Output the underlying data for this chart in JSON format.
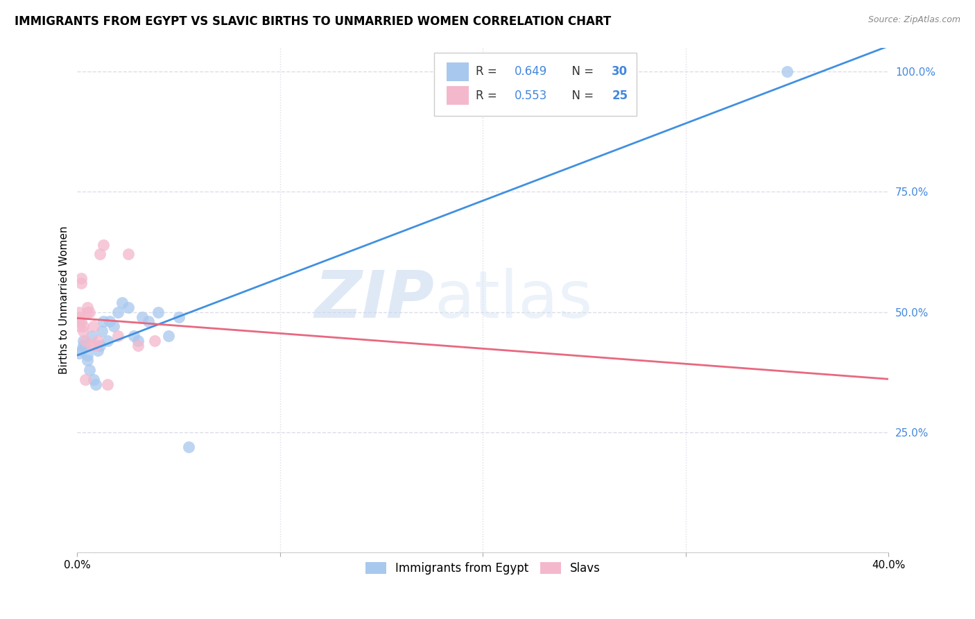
{
  "title": "IMMIGRANTS FROM EGYPT VS SLAVIC BIRTHS TO UNMARRIED WOMEN CORRELATION CHART",
  "source": "Source: ZipAtlas.com",
  "ylabel": "Births to Unmarried Women",
  "xlim": [
    0.0,
    0.4
  ],
  "ylim": [
    0.0,
    1.05
  ],
  "ytick_labels_right": [
    "25.0%",
    "50.0%",
    "75.0%",
    "100.0%"
  ],
  "ytick_positions_right": [
    0.25,
    0.5,
    0.75,
    1.0
  ],
  "blue_color": "#A8C8EE",
  "pink_color": "#F4B8CC",
  "blue_line_color": "#4090E0",
  "pink_line_color": "#E86880",
  "blue_label": "Immigrants from Egypt",
  "pink_label": "Slavs",
  "R_blue": 0.649,
  "N_blue": 30,
  "R_pink": 0.553,
  "N_pink": 25,
  "blue_scatter_x": [
    0.001,
    0.002,
    0.003,
    0.003,
    0.004,
    0.005,
    0.005,
    0.006,
    0.007,
    0.008,
    0.009,
    0.01,
    0.011,
    0.012,
    0.013,
    0.015,
    0.016,
    0.018,
    0.02,
    0.022,
    0.025,
    0.028,
    0.03,
    0.032,
    0.035,
    0.04,
    0.045,
    0.05,
    0.055,
    0.35
  ],
  "blue_scatter_y": [
    0.415,
    0.42,
    0.43,
    0.44,
    0.43,
    0.4,
    0.41,
    0.38,
    0.45,
    0.36,
    0.35,
    0.42,
    0.43,
    0.46,
    0.48,
    0.44,
    0.48,
    0.47,
    0.5,
    0.52,
    0.51,
    0.45,
    0.44,
    0.49,
    0.48,
    0.5,
    0.45,
    0.49,
    0.22,
    1.0
  ],
  "pink_scatter_x": [
    0.001,
    0.001,
    0.001,
    0.001,
    0.002,
    0.002,
    0.002,
    0.003,
    0.003,
    0.004,
    0.004,
    0.005,
    0.005,
    0.006,
    0.007,
    0.008,
    0.009,
    0.01,
    0.011,
    0.013,
    0.015,
    0.02,
    0.025,
    0.03,
    0.038
  ],
  "pink_scatter_y": [
    0.47,
    0.48,
    0.49,
    0.5,
    0.56,
    0.57,
    0.48,
    0.47,
    0.46,
    0.44,
    0.36,
    0.5,
    0.51,
    0.5,
    0.43,
    0.47,
    0.43,
    0.44,
    0.62,
    0.64,
    0.35,
    0.45,
    0.62,
    0.43,
    0.44
  ],
  "watermark_zip": "ZIP",
  "watermark_atlas": "atlas",
  "background_color": "#FFFFFF",
  "grid_color": "#DCDCE8",
  "title_fontsize": 12,
  "axis_label_fontsize": 11,
  "tick_fontsize": 11
}
